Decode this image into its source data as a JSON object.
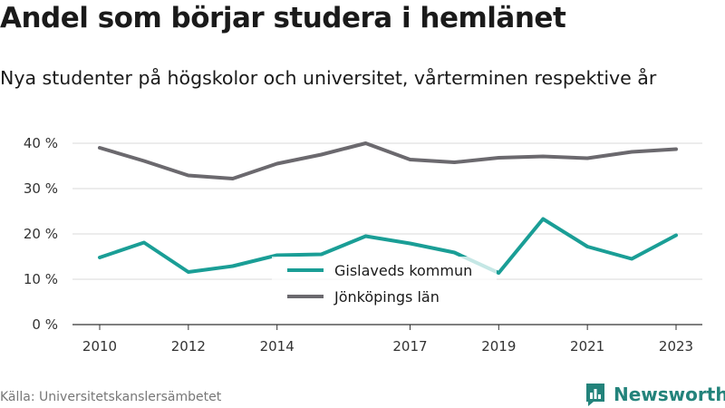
{
  "title": "Andel som börjar studera i hemlänet",
  "subtitle": "Nya studenter på högskolor och universitet, vårterminen respektive år",
  "source": "Källa: Universitetskanslersämbetet",
  "brand": "Newsworthy",
  "colors": {
    "teal": "#1a9e96",
    "gray": "#6b696e",
    "grid": "#d9d9d9",
    "brand": "#23837b"
  },
  "chart_data": {
    "type": "line",
    "title": "Andel som börjar studera i hemlänet",
    "subtitle": "Nya studenter på högskolor och universitet, vårterminen respektive år",
    "x": [
      2010,
      2011,
      2012,
      2013,
      2014,
      2015,
      2016,
      2017,
      2018,
      2019,
      2020,
      2021,
      2022,
      2023
    ],
    "x_ticks": [
      2010,
      2012,
      2014,
      2017,
      2019,
      2021,
      2023
    ],
    "y_ticks": [
      0,
      10,
      20,
      30,
      40
    ],
    "y_tick_labels": [
      "0 %",
      "10 %",
      "20 %",
      "30 %",
      "40 %"
    ],
    "ylim": [
      0,
      40
    ],
    "grid": true,
    "legend_position": "center",
    "series": [
      {
        "name": "Gislaveds kommun",
        "color": "#1a9e96",
        "values": [
          14.8,
          18.1,
          11.6,
          12.9,
          15.3,
          15.5,
          19.5,
          17.9,
          15.9,
          11.4,
          23.3,
          17.2,
          14.5,
          19.7
        ]
      },
      {
        "name": "Jönköpings län",
        "color": "#6b696e",
        "values": [
          39.0,
          36.1,
          32.9,
          32.2,
          35.5,
          37.5,
          40.0,
          36.4,
          35.8,
          36.8,
          37.1,
          36.7,
          38.1,
          38.7
        ]
      }
    ]
  }
}
